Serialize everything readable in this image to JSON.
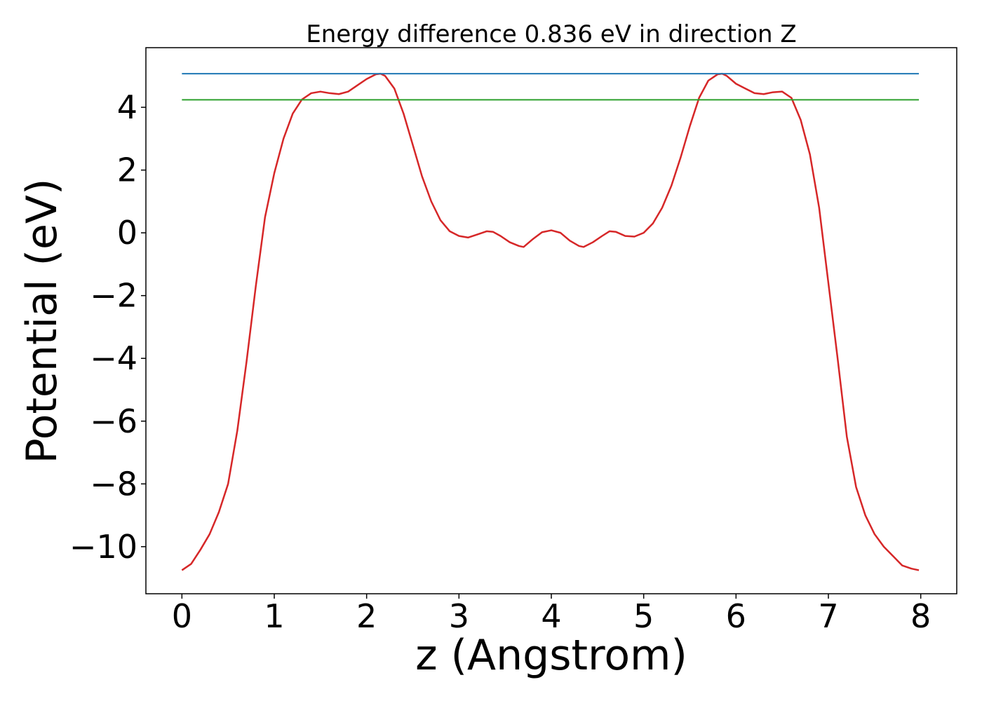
{
  "chart_data": {
    "type": "line",
    "title": "Energy difference 0.836 eV in direction Z",
    "xlabel": "z (Angstrom)",
    "ylabel": "Potential (eV)",
    "xlim": [
      -0.39,
      8.39
    ],
    "ylim": [
      -11.5,
      5.9
    ],
    "xticks": [
      0,
      1,
      2,
      3,
      4,
      5,
      6,
      7,
      8
    ],
    "yticks": [
      -10,
      -8,
      -6,
      -4,
      -2,
      0,
      2,
      4
    ],
    "xtick_labels": [
      "0",
      "1",
      "2",
      "3",
      "4",
      "5",
      "6",
      "7",
      "8"
    ],
    "ytick_labels": [
      "−10",
      "−8",
      "−6",
      "−4",
      "−2",
      "0",
      "2",
      "4"
    ],
    "grid": false,
    "legend": "none",
    "series": [
      {
        "color": "#d62728",
        "x": [
          0.0,
          0.1,
          0.2,
          0.3,
          0.4,
          0.5,
          0.6,
          0.7,
          0.8,
          0.9,
          1.0,
          1.1,
          1.2,
          1.3,
          1.4,
          1.5,
          1.6,
          1.7,
          1.8,
          1.9,
          2.0,
          2.1,
          2.15,
          2.2,
          2.3,
          2.4,
          2.5,
          2.6,
          2.7,
          2.8,
          2.9,
          3.0,
          3.1,
          3.2,
          3.3,
          3.37,
          3.45,
          3.55,
          3.65,
          3.7,
          3.8,
          3.9,
          4.0,
          4.1,
          4.2,
          4.3,
          4.35,
          4.45,
          4.55,
          4.63,
          4.7,
          4.8,
          4.9,
          5.0,
          5.1,
          5.2,
          5.3,
          5.4,
          5.5,
          5.6,
          5.7,
          5.8,
          5.85,
          5.9,
          6.0,
          6.1,
          6.2,
          6.3,
          6.4,
          6.5,
          6.6,
          6.7,
          6.8,
          6.9,
          7.0,
          7.1,
          7.2,
          7.3,
          7.4,
          7.5,
          7.6,
          7.7,
          7.8,
          7.9,
          7.98
        ],
        "y": [
          -10.75,
          -10.55,
          -10.1,
          -9.6,
          -8.9,
          -8.0,
          -6.3,
          -4.1,
          -1.7,
          0.5,
          1.9,
          3.0,
          3.8,
          4.25,
          4.45,
          4.5,
          4.45,
          4.42,
          4.5,
          4.7,
          4.9,
          5.05,
          5.07,
          5.0,
          4.6,
          3.8,
          2.8,
          1.8,
          1.0,
          0.4,
          0.05,
          -0.1,
          -0.15,
          -0.05,
          0.05,
          0.03,
          -0.1,
          -0.3,
          -0.42,
          -0.45,
          -0.2,
          0.02,
          0.08,
          0.0,
          -0.25,
          -0.42,
          -0.45,
          -0.3,
          -0.1,
          0.05,
          0.03,
          -0.1,
          -0.12,
          0.0,
          0.3,
          0.8,
          1.5,
          2.4,
          3.4,
          4.3,
          4.85,
          5.05,
          5.07,
          5.0,
          4.75,
          4.6,
          4.45,
          4.42,
          4.48,
          4.5,
          4.3,
          3.6,
          2.5,
          0.8,
          -1.6,
          -4.0,
          -6.5,
          -8.1,
          -9.0,
          -9.6,
          -10.0,
          -10.3,
          -10.6,
          -10.7,
          -10.75
        ]
      },
      {
        "color": "#1f77b4",
        "x": [
          0.0,
          7.98
        ],
        "y": [
          5.07,
          5.07
        ]
      },
      {
        "color": "#2ca02c",
        "x": [
          0.0,
          7.98
        ],
        "y": [
          4.24,
          4.24
        ]
      }
    ]
  }
}
